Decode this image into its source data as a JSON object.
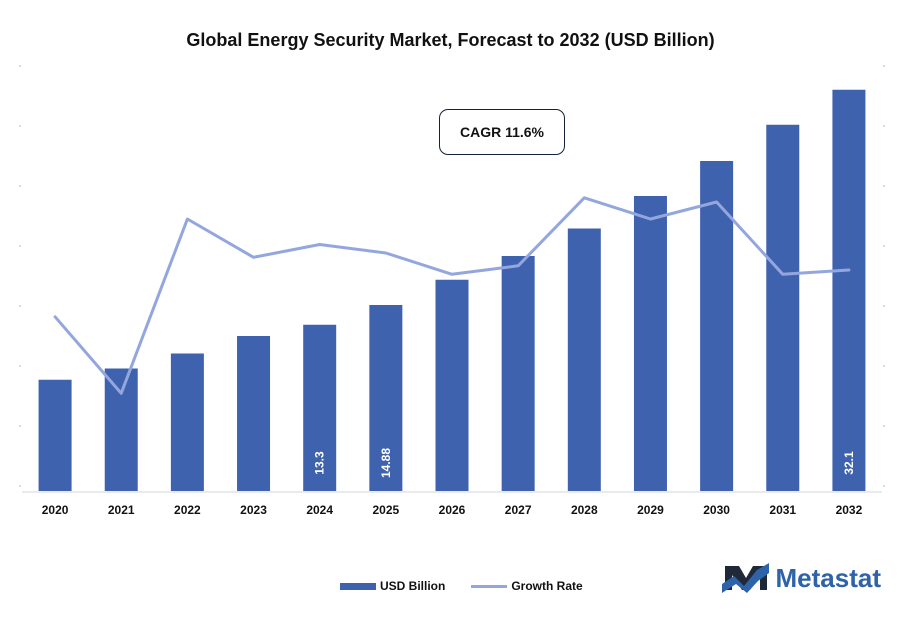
{
  "chart_data": {
    "type": "bar",
    "title": "Global Energy Security Market, Forecast to 2032 (USD Billion)",
    "categories": [
      "2020",
      "2021",
      "2022",
      "2023",
      "2024",
      "2025",
      "2026",
      "2027",
      "2028",
      "2029",
      "2030",
      "2031",
      "2032"
    ],
    "series": [
      {
        "name": "USD Billion",
        "values": [
          8.9,
          9.8,
          11.0,
          12.4,
          13.3,
          14.88,
          16.9,
          18.8,
          21.0,
          23.6,
          26.4,
          29.3,
          32.1
        ],
        "visible_labels": [
          "",
          "",
          "",
          "",
          "13.3",
          "14.88",
          "",
          "",
          "",
          "",
          "",
          "",
          "32.1"
        ],
        "color": "#3f62ae"
      },
      {
        "name": "Growth Rate",
        "values": [
          10.1,
          8.3,
          12.4,
          11.5,
          11.8,
          11.6,
          11.1,
          11.3,
          12.9,
          12.4,
          12.8,
          11.1,
          11.2
        ],
        "color": "#94a6de"
      }
    ],
    "ylim_bars": [
      0,
      34
    ],
    "ylim_line": [
      6,
      16
    ],
    "annotations": [
      {
        "text": "CAGR 11.6%"
      }
    ],
    "legend": {
      "position": "bottom",
      "items": [
        "USD Billion",
        "Growth Rate"
      ]
    },
    "grid": false
  },
  "branding": {
    "logo_text": "Metastat",
    "logo_icon": "metastat-m-icon",
    "accent_color": "#2f63a9"
  }
}
